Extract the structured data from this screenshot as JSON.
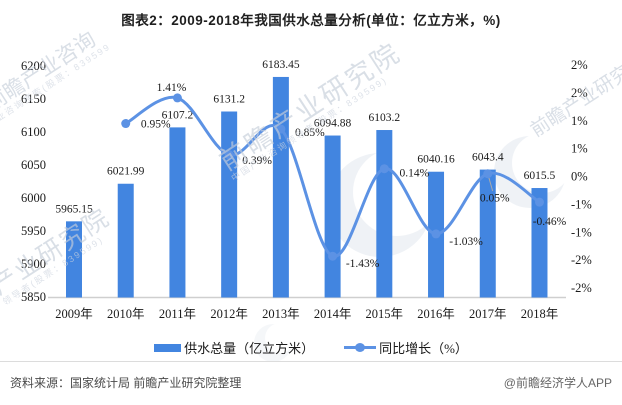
{
  "title": "图表2：2009-2018年我国供水总量分析(单位：亿立方米，%)",
  "legend": {
    "items": [
      {
        "label": "供水总量（亿立方米）",
        "type": "bar"
      },
      {
        "label": "同比增长（%）",
        "type": "line"
      }
    ]
  },
  "footer": {
    "source": "资料来源：国家统计局 前瞻产业研究院整理",
    "credit": "@前瞻经济学人APP"
  },
  "colors": {
    "bar": "#4285E0",
    "line": "#5C92E4",
    "baseline": "#CFCFCF",
    "text": "#1A1A1A",
    "leader": "#AAAAAA"
  },
  "watermarks": {
    "top_left": "前瞻产业咨询",
    "top_left_sub": "业咨询搜索(股票：839599",
    "center": "前瞻产业研究院",
    "center_sub": "中国产业咨询领导者(股票：839599)",
    "bottom_left": "产业研究院",
    "bottom_left_sub": "领导者(股票：839599)",
    "top_right": "前瞻产业研究"
  },
  "chart_data": {
    "type": "bar+line",
    "title": "图表2：2009-2018年我国供水总量分析(单位：亿立方米，%)",
    "categories": [
      "2009年",
      "2010年",
      "2011年",
      "2012年",
      "2013年",
      "2014年",
      "2015年",
      "2016年",
      "2017年",
      "2018年"
    ],
    "series": [
      {
        "name": "供水总量（亿立方米）",
        "type": "bar",
        "values": [
          5965.15,
          6021.99,
          6107.2,
          6131.2,
          6183.45,
          6094.88,
          6103.2,
          6040.16,
          6043.4,
          6015.5
        ],
        "labels": [
          "5965.15",
          "6021.99",
          "6107.2",
          "6131.2",
          "6183.45",
          "6094.88",
          "6103.2",
          "6040.16",
          "6043.4",
          "6015.5"
        ]
      },
      {
        "name": "同比增长（%）",
        "type": "line",
        "start_index": 1,
        "values": [
          0.95,
          1.41,
          0.39,
          0.85,
          -1.43,
          0.14,
          -1.03,
          0.05,
          -0.46
        ],
        "labels": [
          "0.95%",
          "1.41%",
          "0.39%",
          "0.85%",
          "-1.43%",
          "0.14%",
          "-1.03%",
          "0.05%",
          "-0.46%"
        ],
        "label_offsets": [
          [
            30,
            0
          ],
          [
            -6,
            -11
          ],
          [
            28,
            5
          ],
          [
            29,
            3
          ],
          [
            30,
            7
          ],
          [
            30,
            4
          ],
          [
            30,
            7
          ],
          [
            7,
            24
          ],
          [
            10,
            19
          ]
        ],
        "leader_index": 7
      }
    ],
    "left_axis": {
      "min": 5850,
      "max": 6200,
      "tick_labels": [
        "6200",
        "6150",
        "6100",
        "6050",
        "6000",
        "5950",
        "5900",
        "5850"
      ]
    },
    "right_axis": {
      "min": -2,
      "max": 2,
      "tick_labels": [
        "2%",
        "2%",
        "1%",
        "1%",
        "0%",
        "-1%",
        "-1%",
        "-2%",
        "-2%"
      ]
    },
    "grid": false,
    "legend_position": "bottom"
  }
}
